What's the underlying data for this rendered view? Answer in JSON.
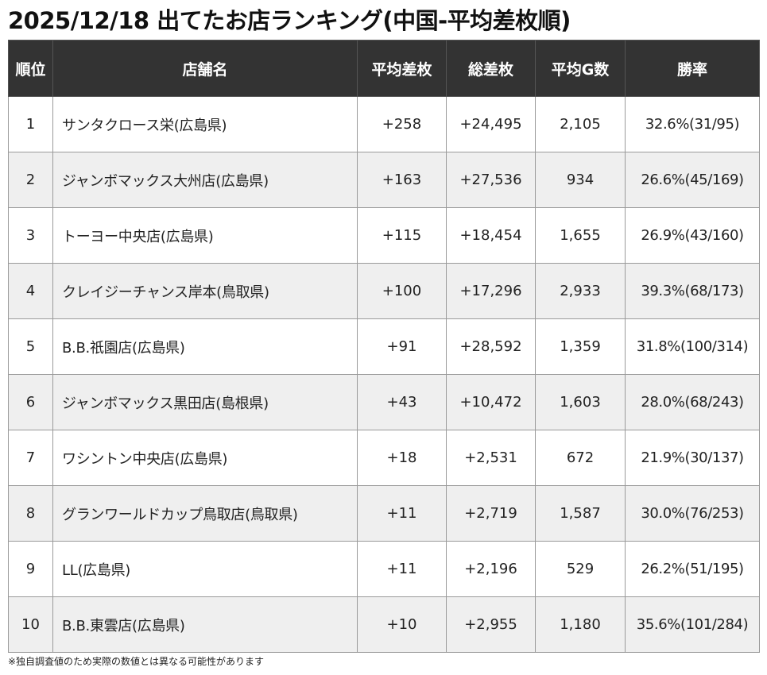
{
  "title": "2025/12/18 出てたお店ランキング(中国-平均差枚順)",
  "columns": {
    "rank": "順位",
    "name": "店舗名",
    "avg_diff": "平均差枚",
    "total_diff": "総差枚",
    "avg_games": "平均G数",
    "win_rate": "勝率"
  },
  "rows": [
    {
      "rank": "1",
      "name": "サンタクロース栄(広島県)",
      "avg_diff": "+258",
      "total_diff": "+24,495",
      "avg_games": "2,105",
      "win_rate": "32.6%(31/95)"
    },
    {
      "rank": "2",
      "name": "ジャンボマックス大州店(広島県)",
      "avg_diff": "+163",
      "total_diff": "+27,536",
      "avg_games": "934",
      "win_rate": "26.6%(45/169)"
    },
    {
      "rank": "3",
      "name": "トーヨー中央店(広島県)",
      "avg_diff": "+115",
      "total_diff": "+18,454",
      "avg_games": "1,655",
      "win_rate": "26.9%(43/160)"
    },
    {
      "rank": "4",
      "name": "クレイジーチャンス岸本(鳥取県)",
      "avg_diff": "+100",
      "total_diff": "+17,296",
      "avg_games": "2,933",
      "win_rate": "39.3%(68/173)"
    },
    {
      "rank": "5",
      "name": "B.B.祇園店(広島県)",
      "avg_diff": "+91",
      "total_diff": "+28,592",
      "avg_games": "1,359",
      "win_rate": "31.8%(100/314)"
    },
    {
      "rank": "6",
      "name": "ジャンボマックス黒田店(島根県)",
      "avg_diff": "+43",
      "total_diff": "+10,472",
      "avg_games": "1,603",
      "win_rate": "28.0%(68/243)"
    },
    {
      "rank": "7",
      "name": "ワシントン中央店(広島県)",
      "avg_diff": "+18",
      "total_diff": "+2,531",
      "avg_games": "672",
      "win_rate": "21.9%(30/137)"
    },
    {
      "rank": "8",
      "name": "グランワールドカップ鳥取店(鳥取県)",
      "avg_diff": "+11",
      "total_diff": "+2,719",
      "avg_games": "1,587",
      "win_rate": "30.0%(76/253)"
    },
    {
      "rank": "9",
      "name": "LL(広島県)",
      "avg_diff": "+11",
      "total_diff": "+2,196",
      "avg_games": "529",
      "win_rate": "26.2%(51/195)"
    },
    {
      "rank": "10",
      "name": "B.B.東雲店(広島県)",
      "avg_diff": "+10",
      "total_diff": "+2,955",
      "avg_games": "1,180",
      "win_rate": "35.6%(101/284)"
    }
  ],
  "footnote": "※独自調査値のため実際の数値とは異なる可能性があります"
}
